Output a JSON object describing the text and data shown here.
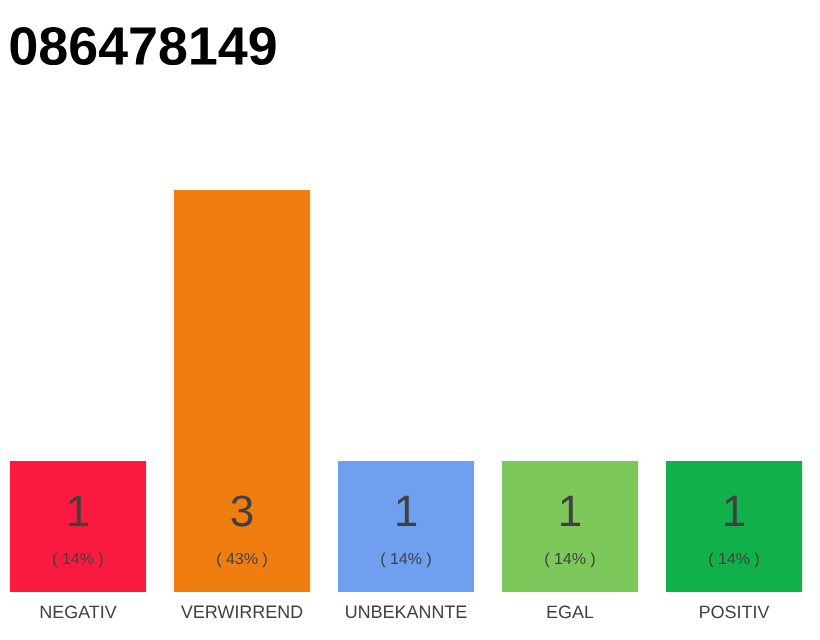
{
  "chart_data": {
    "type": "bar",
    "title": "086478149",
    "categories": [
      "NEGATIV",
      "VERWIRREND",
      "UNBEKANNTE",
      "EGAL",
      "POSITIV"
    ],
    "values": [
      14,
      43,
      14,
      14,
      14
    ],
    "colors": [
      "#fb1a3f",
      "#f07d0f",
      "#6ea0ef",
      "#7dc85a",
      "#12b04a"
    ],
    "value_labels": [
      "( 14% )",
      "( 43% )",
      "( 14% )",
      "( 14% )",
      "( 14% )"
    ],
    "annotations": [
      "1",
      "3",
      "1",
      "1",
      "1"
    ]
  }
}
